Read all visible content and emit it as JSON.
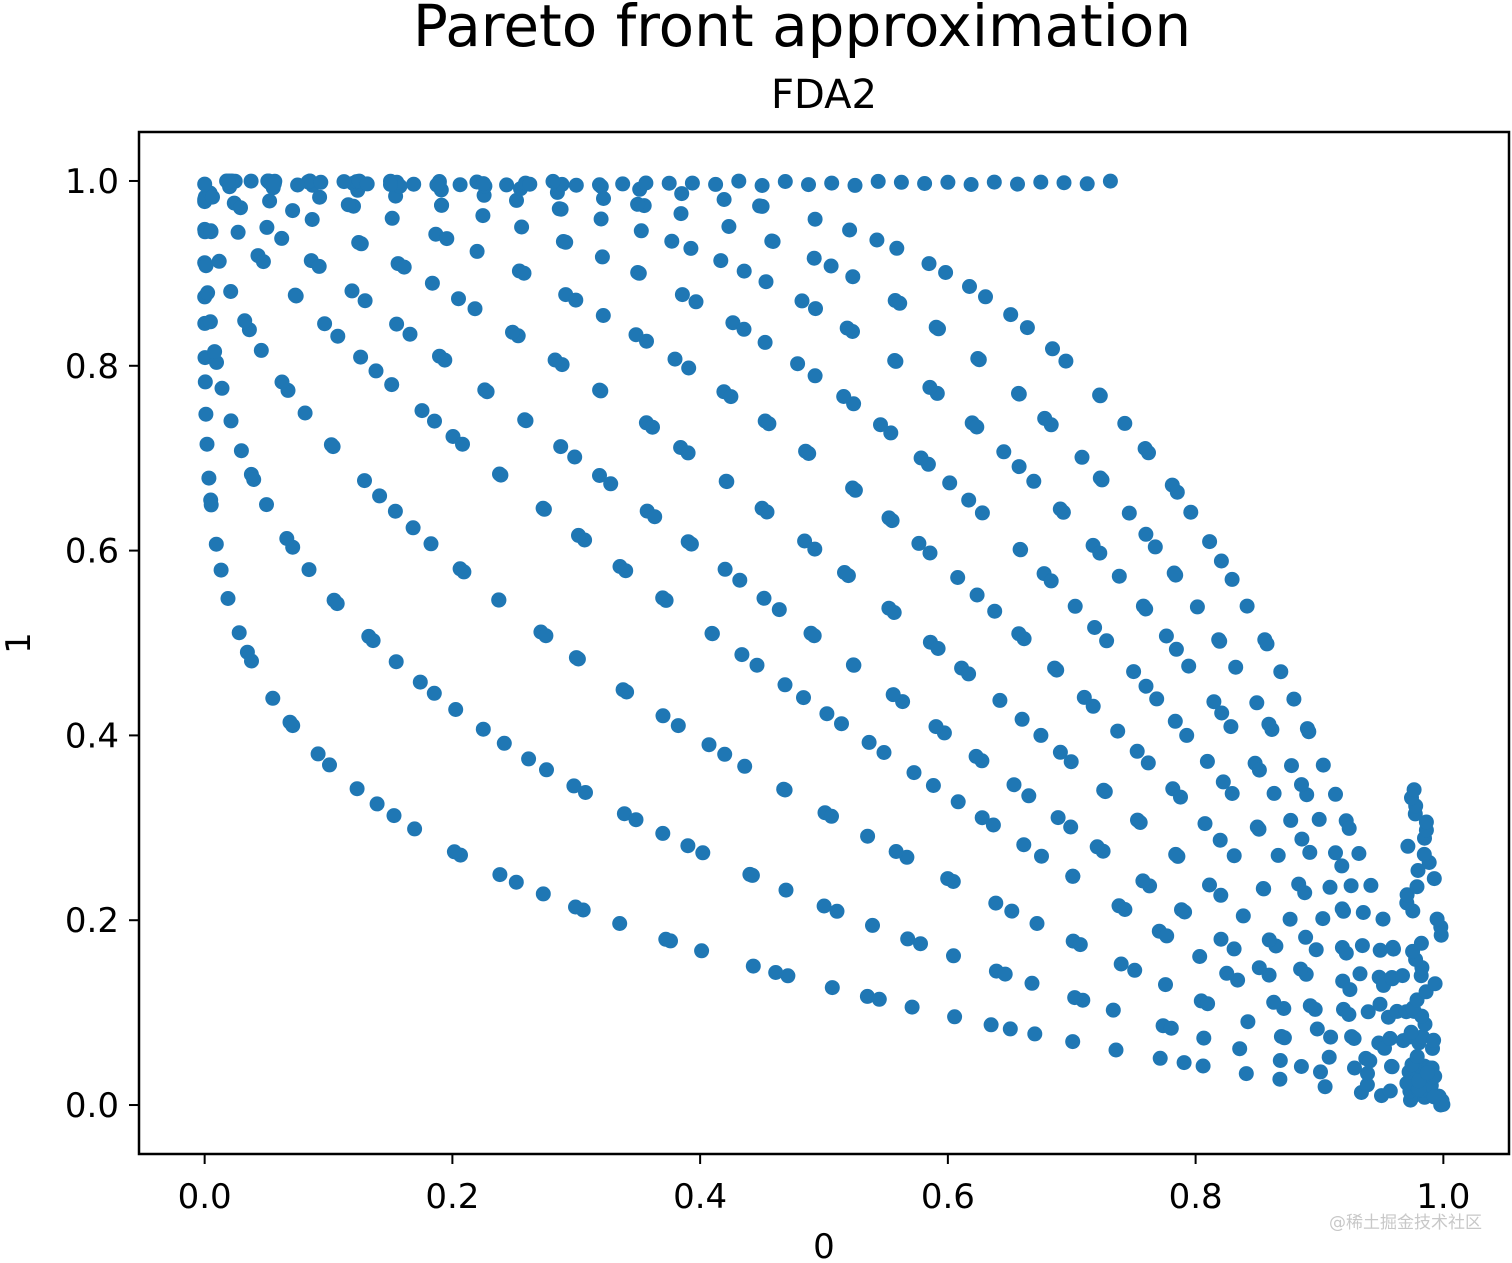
{
  "chart_data": {
    "type": "scatter",
    "title": "Pareto front approximation",
    "subtitle": "FDA2",
    "xlabel": "0",
    "ylabel": "1",
    "xlim": [
      -0.053,
      1.053
    ],
    "ylim": [
      -0.053,
      1.053
    ],
    "xticks": [
      "0.0",
      "0.2",
      "0.4",
      "0.6",
      "0.8",
      "1.0"
    ],
    "yticks": [
      "0.0",
      "0.2",
      "0.4",
      "0.6",
      "0.8",
      "1.0"
    ],
    "grid": false,
    "legend": "none",
    "marker_color": "#1f77b4",
    "description_of_series": "Family of Pareto fronts f2 = 1 - f1^p for several exponents p",
    "exponents": [
      0.2,
      0.35,
      0.55,
      0.8,
      1.0,
      1.3,
      1.7,
      2.2,
      2.8,
      3.5,
      4.5
    ],
    "points_per_curve": 60
  },
  "watermark": "@稀土掘金技术社区"
}
